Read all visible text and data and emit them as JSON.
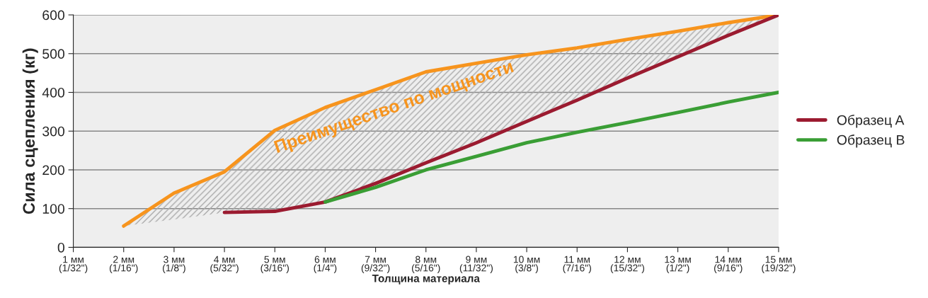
{
  "chart_data": {
    "type": "line",
    "xlabel": "Толщина материала",
    "ylabel": "Сила сцепления (кг)",
    "categories": [
      "1 мм\n(1/32\")",
      "2 мм\n(1/16\")",
      "3 мм\n(1/8\")",
      "4 мм\n(5/32\")",
      "5 мм\n(3/16\")",
      "6 мм\n(1/4\")",
      "7 мм\n(9/32\")",
      "8 мм\n(5/16\")",
      "9 мм\n(11/32\")",
      "10 мм\n(3/8\")",
      "11 мм\n(7/16\")",
      "12 мм\n(15/32\")",
      "13 мм\n(1/2\")",
      "14 мм\n(9/16\")",
      "15 мм\n(19/32\")"
    ],
    "series": [
      {
        "color": "#f7941d",
        "values": [
          null,
          55,
          140,
          195,
          302,
          361,
          407,
          453,
          475,
          497,
          515,
          537,
          558,
          580,
          600
        ],
        "upper": [
          null,
          55,
          140,
          195,
          302,
          361,
          407,
          453,
          475,
          497,
          515,
          537,
          558,
          580,
          600
        ],
        "lower": [
          null,
          55,
          72,
          90,
          93,
          117,
          165,
          218,
          270,
          325,
          380,
          437,
          492,
          547,
          600
        ]
      },
      {
        "name": "Образец A",
        "color": "#9b1b30",
        "values": [
          null,
          null,
          null,
          90,
          93,
          117,
          165,
          218,
          270,
          325,
          380,
          437,
          492,
          547,
          600
        ]
      },
      {
        "name": "Образец B",
        "color": "#3a9e35",
        "values": [
          null,
          null,
          null,
          null,
          null,
          117,
          155,
          200,
          235,
          270,
          297,
          322,
          348,
          375,
          400
        ]
      }
    ],
    "annotations": [
      "Преимущество по мощности"
    ],
    "ylim": [
      0,
      600
    ],
    "yticks": [
      0,
      100,
      200,
      300,
      400,
      500,
      600
    ],
    "grid": "y",
    "legend": "right",
    "marker": "none",
    "line_style": "solid"
  }
}
